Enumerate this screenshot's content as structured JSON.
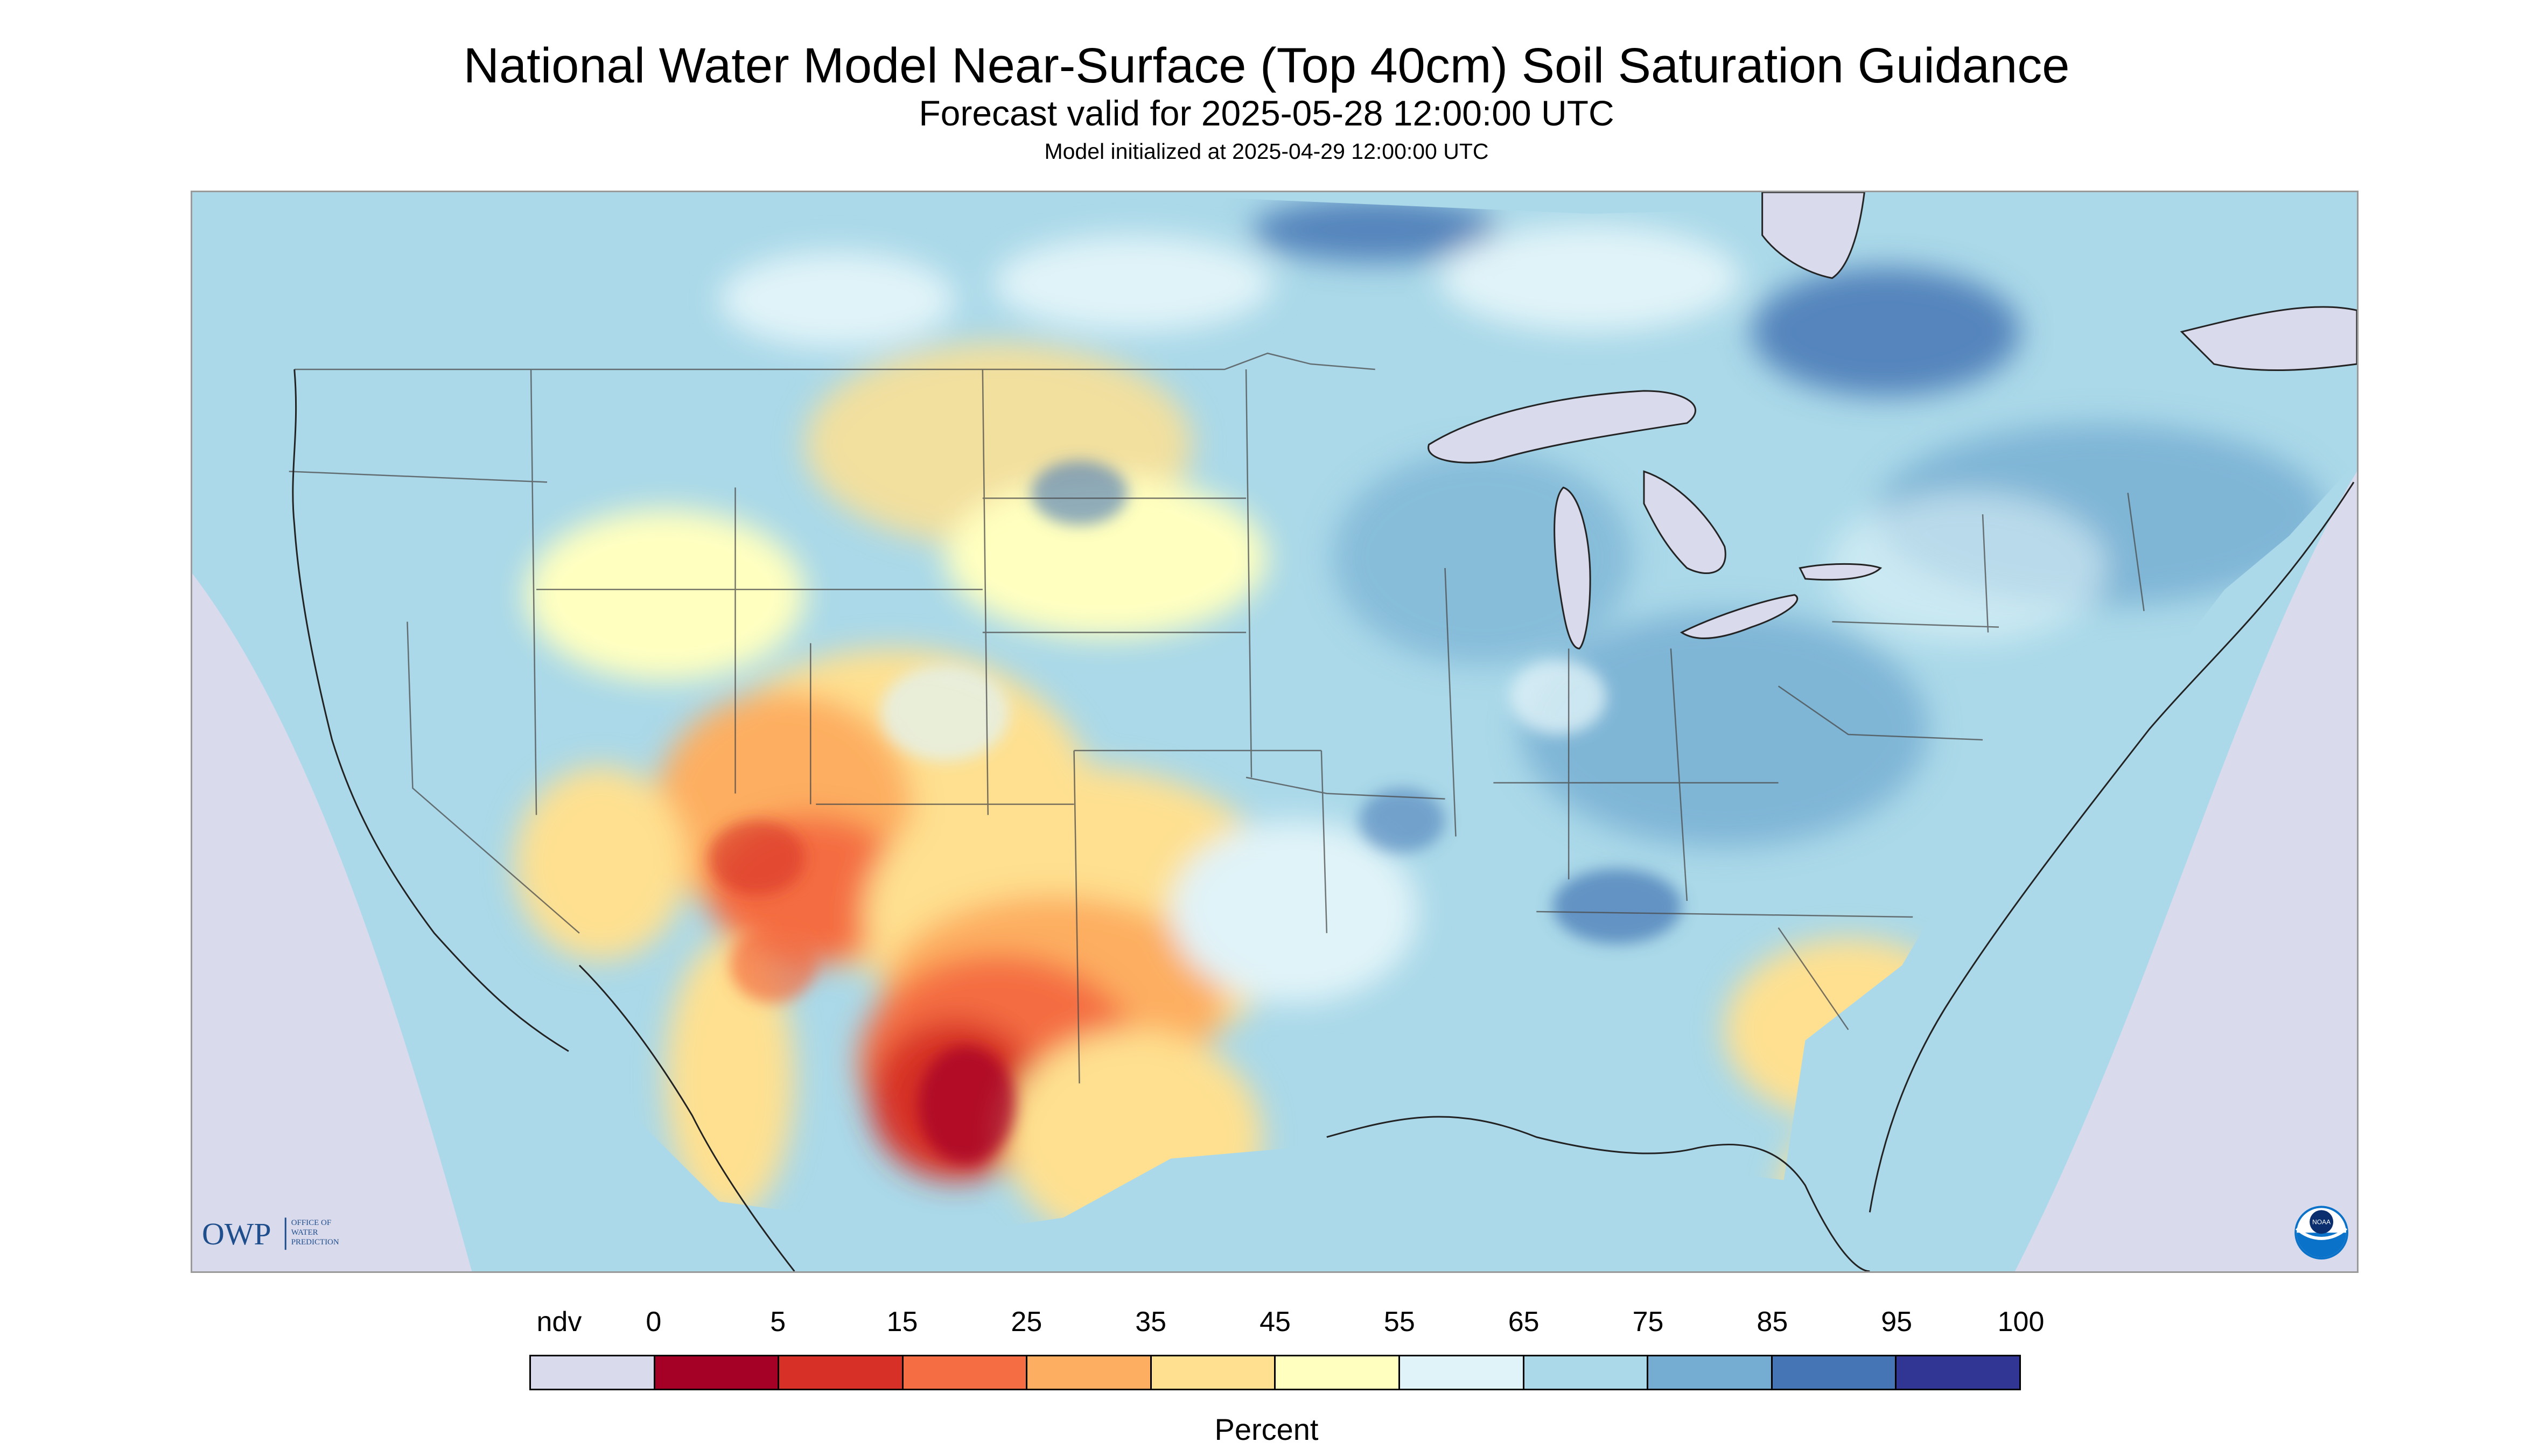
{
  "titles": {
    "main": "National Water Model Near-Surface (Top 40cm) Soil Saturation Guidance",
    "valid": "Forecast valid for 2025-05-28 12:00:00 UTC",
    "init": "Model initialized at 2025-04-29 12:00:00 UTC"
  },
  "logos": {
    "owp_mark": "OWP",
    "owp_text": [
      "OFFICE OF",
      "WATER",
      "PREDICTION"
    ],
    "noaa_text": "NOAA"
  },
  "legend": {
    "unit_label": "Percent",
    "tick_labels": [
      "ndv",
      "0",
      "5",
      "15",
      "25",
      "35",
      "45",
      "55",
      "65",
      "75",
      "85",
      "95",
      "100"
    ],
    "bins": [
      {
        "label": "ndv",
        "color": "#dadaed"
      },
      {
        "label": "0-5",
        "color": "#a50026"
      },
      {
        "label": "5-15",
        "color": "#d73027"
      },
      {
        "label": "15-25",
        "color": "#f46d43"
      },
      {
        "label": "25-35",
        "color": "#fdae61"
      },
      {
        "label": "35-45",
        "color": "#fee090"
      },
      {
        "label": "45-55",
        "color": "#ffffbf"
      },
      {
        "label": "55-65",
        "color": "#e0f3f8"
      },
      {
        "label": "65-75",
        "color": "#abd9e9"
      },
      {
        "label": "75-85",
        "color": "#74add1"
      },
      {
        "label": "85-95",
        "color": "#4575b4"
      },
      {
        "label": "95-100",
        "color": "#313695"
      }
    ]
  },
  "map": {
    "background_color": "#abd9e9",
    "ndv_color": "#dadaed",
    "boundary_color": "#4a4a4a"
  }
}
